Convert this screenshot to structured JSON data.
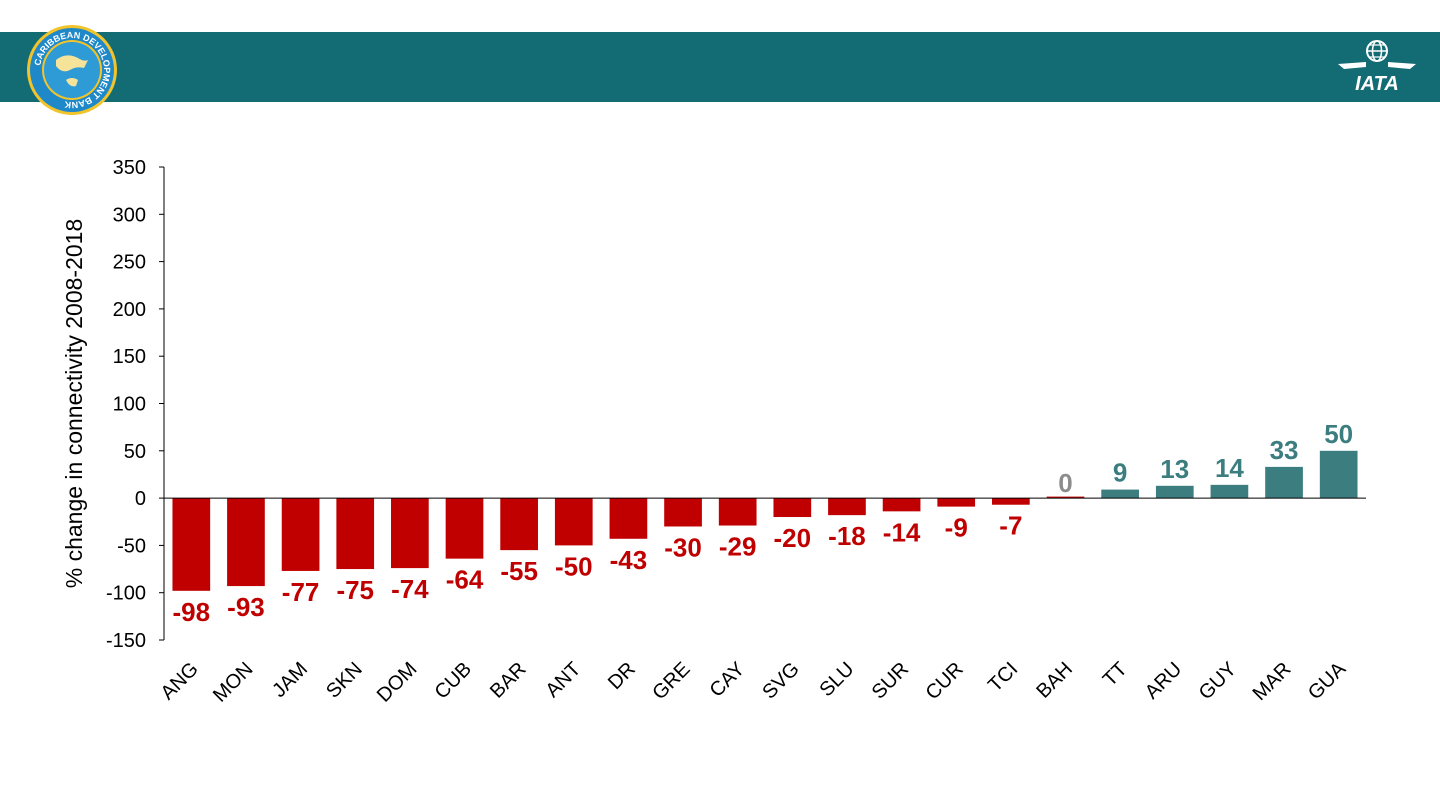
{
  "header": {
    "bg_color": "#136B74",
    "left_logo": {
      "icon": "caribbean-development-bank-logo",
      "ring_text": "CARIBBEAN DEVELOPMENT BANK",
      "ring_color": "#F2C42B",
      "map_color": "#1E88C9"
    },
    "right_logo": {
      "icon": "iata-logo",
      "text": "IATA",
      "color": "#ffffff"
    }
  },
  "chart_data": {
    "type": "bar",
    "title": "",
    "xlabel": "",
    "ylabel": "% change in connectivity 2008-2018",
    "ylim": [
      -150,
      350
    ],
    "yticks": [
      350,
      300,
      250,
      200,
      150,
      100,
      50,
      0,
      -50,
      -100,
      -150
    ],
    "grid": false,
    "categories": [
      "ANG",
      "MON",
      "JAM",
      "SKN",
      "DOM",
      "CUB",
      "BAR",
      "ANT",
      "DR",
      "GRE",
      "CAY",
      "SVG",
      "SLU",
      "SUR",
      "CUR",
      "TCI",
      "BAH",
      "TT",
      "ARU",
      "GUY",
      "MAR",
      "GUA"
    ],
    "values": [
      -98,
      -93,
      -77,
      -75,
      -74,
      -64,
      -55,
      -50,
      -43,
      -30,
      -29,
      -20,
      -18,
      -14,
      -9,
      -7,
      0,
      9,
      13,
      14,
      33,
      50
    ],
    "data_labels": [
      "-98",
      "-93",
      "-77",
      "-75",
      "-74",
      "-64",
      "-55",
      "-50",
      "-43",
      "-30",
      "-29",
      "-20",
      "-18",
      "-14",
      "-9",
      "-7",
      "0",
      "9",
      "13",
      "14",
      "33",
      "50"
    ],
    "colors": {
      "negative": "#C00000",
      "positive": "#3C7E80",
      "zero_label": "#8C8C8C"
    }
  }
}
